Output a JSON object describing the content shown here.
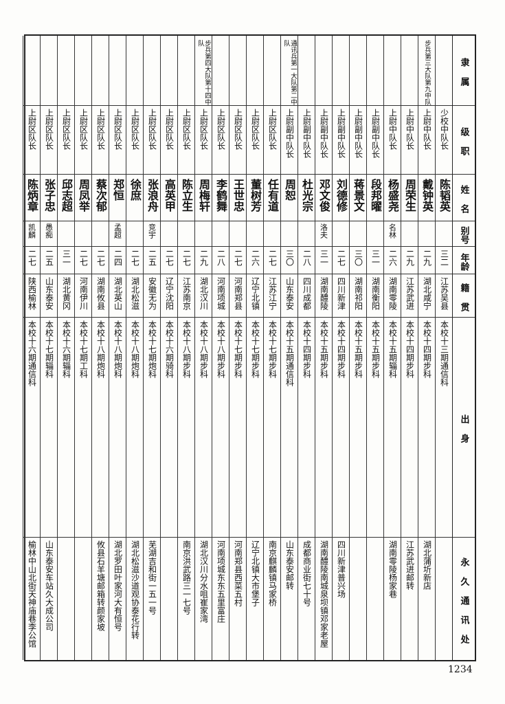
{
  "headers": {
    "unit": "隶 属",
    "rank": "级 职",
    "name": "姓 名",
    "alias": "别号",
    "age": "年龄",
    "origin": "籍 贯",
    "education": "出   身",
    "address": "永 久 通 讯 处"
  },
  "rows": [
    {
      "unit": "",
      "rank": "少校中队长",
      "name": "陈韬英",
      "alias": "",
      "age": "三二",
      "origin": "江苏吴县",
      "education": "本校十三期通信科",
      "address": ""
    },
    {
      "unit": "步兵第三大队第九中队",
      "rank": "上尉中队长",
      "name": "戴钟英",
      "alias": "",
      "age": "二九",
      "origin": "湖北咸宁",
      "education": "本校十四期步科",
      "address": "湖北蒲圻新店"
    },
    {
      "unit": "",
      "rank": "上尉中队长",
      "name": "周荣生",
      "alias": "",
      "age": "二九",
      "origin": "江苏武进",
      "education": "本校十四期步科",
      "address": "江苏武进邮转"
    },
    {
      "unit": "",
      "rank": "上尉中队长",
      "name": "杨盛尧",
      "alias": "名林",
      "age": "二六",
      "origin": "湖南零陵",
      "education": "本校十五期辎科",
      "address": "湖南零陵杨家巷"
    },
    {
      "unit": "",
      "rank": "上尉副中队长",
      "name": "段邦曜",
      "alias": "",
      "age": "三一",
      "origin": "湖南衡阳",
      "education": "本校十五期步科",
      "address": ""
    },
    {
      "unit": "",
      "rank": "上尉副中队长",
      "name": "蒋景文",
      "alias": "",
      "age": "三〇",
      "origin": "湖南祁阳",
      "education": "本校十五期步科",
      "address": ""
    },
    {
      "unit": "",
      "rank": "上尉副中队长",
      "name": "刘德修",
      "alias": "",
      "age": "二七",
      "origin": "四川新津",
      "education": "本校十四期步科",
      "address": "四川新津普兴场"
    },
    {
      "unit": "",
      "rank": "上尉副中队长",
      "name": "邓文俊",
      "alias": "洛夫",
      "age": "三一",
      "origin": "湖南醴陵",
      "education": "本校十五期步科",
      "address": "湖南醴陵南城泉坝镇邓家老屋"
    },
    {
      "unit": "",
      "rank": "上尉副中队长",
      "name": "杜光宗",
      "alias": "",
      "age": "二八",
      "origin": "四川成都",
      "education": "本校十四期步科",
      "address": "成都商业街七十号"
    },
    {
      "unit": "通讯兵第一大队第二中队",
      "rank": "上尉副中队长",
      "name": "周恕",
      "alias": "",
      "age": "三〇",
      "origin": "山东泰安",
      "education": "本校十五期通信科",
      "address": "山东泰安邮转"
    },
    {
      "unit": "",
      "rank": "上尉区队长",
      "name": "任有道",
      "alias": "",
      "age": "二七",
      "origin": "江苏江宁",
      "education": "本校十七期步科",
      "address": "南京麒麟镇马家桥"
    },
    {
      "unit": "",
      "rank": "上尉区队长",
      "name": "董树芳",
      "alias": "",
      "age": "二六",
      "origin": "辽宁北镇",
      "education": "本校十七期步科",
      "address": "辽宁北镇大市堡子"
    },
    {
      "unit": "",
      "rank": "上尉区队长",
      "name": "王世忠",
      "alias": "",
      "age": "二七",
      "origin": "河南郑县",
      "education": "本校十七期步科",
      "address": "河南郑县西菜五村"
    },
    {
      "unit": "",
      "rank": "上尉区队长",
      "name": "李鹤舞",
      "alias": "",
      "age": "二八",
      "origin": "河南项城",
      "education": "本校十八期步科",
      "address": "河南项城东东五里富庄"
    },
    {
      "unit": "步兵第四大队第十四中队",
      "rank": "上尉区队长",
      "name": "周梅轩",
      "alias": "",
      "age": "二九",
      "origin": "湖北汉川",
      "education": "本校十八期步科",
      "address": "湖北汉川分水咀崔家湾"
    },
    {
      "unit": "",
      "rank": "上尉区队长",
      "name": "陈立生",
      "alias": "",
      "age": "二七",
      "origin": "江苏南京",
      "education": "本校十八期步科",
      "address": "南京洪武路三一七号"
    },
    {
      "unit": "",
      "rank": "上尉区队长",
      "name": "高英甲",
      "alias": "",
      "age": "二七",
      "origin": "辽宁沈阳",
      "education": "本校十六期骑科",
      "address": ""
    },
    {
      "unit": "",
      "rank": "上尉区队长",
      "name": "张浪舟",
      "alias": "竞宇",
      "age": "二五",
      "origin": "安徽无为",
      "education": "本校十七期炮科",
      "address": "芜湖吉和街一五一号"
    },
    {
      "unit": "",
      "rank": "上尉区队长",
      "name": "徐庶",
      "alias": "",
      "age": "二七",
      "origin": "湖北松滋",
      "education": "本校十八期炮科",
      "address": "湖北松滋沙道观协泰花行转"
    },
    {
      "unit": "",
      "rank": "上尉区队长",
      "name": "郑恒",
      "alias": "孟超",
      "age": "二四",
      "origin": "湖北英山",
      "education": "本校十八期炮科",
      "address": "湖北罗田叶家河大有恒号"
    },
    {
      "unit": "",
      "rank": "上尉区队长",
      "name": "蔡次郁",
      "alias": "",
      "age": "二七",
      "origin": "湖南攸县",
      "education": "本校十八期炮科",
      "address": "攸县石羊塘邮箱转颜家坡"
    },
    {
      "unit": "",
      "rank": "上尉区队长",
      "name": "周凤举",
      "alias": "",
      "age": "二七",
      "origin": "河南伊川",
      "education": "本校十七期工科",
      "address": ""
    },
    {
      "unit": "",
      "rank": "上尉区队长",
      "name": "邱志超",
      "alias": "",
      "age": "三一",
      "origin": "湖北黄冈",
      "education": "本校十六期辎科",
      "address": ""
    },
    {
      "unit": "",
      "rank": "上尉区队长",
      "name": "张子忠",
      "alias": "愚痴",
      "age": "二五",
      "origin": "山东泰安",
      "education": "本校十七期辎科",
      "address": "山东泰安车站久大成公司"
    },
    {
      "unit": "",
      "rank": "上尉区队长",
      "name": "陈炳章",
      "alias": "凯麟",
      "age": "二七",
      "origin": "陕西榆林",
      "education": "本校十六期通信科",
      "address": "榆林中山北街天神庙巷李公馆"
    }
  ],
  "page_number": "1234"
}
